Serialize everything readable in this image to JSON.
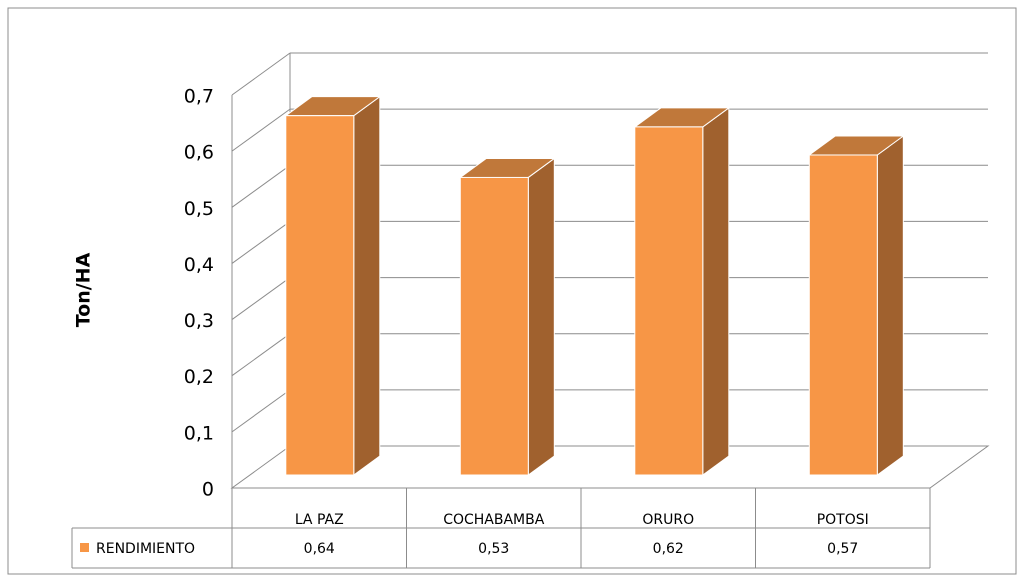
{
  "chart_data": {
    "type": "bar3d",
    "y_label": "Ton/HA",
    "categories": [
      "LA PAZ",
      "COCHABAMBA",
      "ORURO",
      "POTOSI"
    ],
    "series": [
      {
        "name": "RENDIMIENTO",
        "color": "#F79646",
        "values": [
          0.64,
          0.53,
          0.62,
          0.57
        ],
        "value_labels": [
          "0,64",
          "0,53",
          "0,62",
          "0,57"
        ]
      }
    ],
    "ylim": [
      0,
      0.7
    ],
    "yticks": [
      0,
      {
        "value": 0.1,
        "label": "0,1"
      },
      {
        "value": 0.2,
        "label": "0,2"
      },
      {
        "value": 0.3,
        "label": "0,3"
      },
      {
        "value": 0.4,
        "label": "0,4"
      },
      {
        "value": 0.5,
        "label": "0,5"
      },
      {
        "value": 0.6,
        "label": "0,6"
      },
      {
        "value": 0.7,
        "label": "0,7"
      }
    ],
    "grid": true,
    "data_table": true
  }
}
